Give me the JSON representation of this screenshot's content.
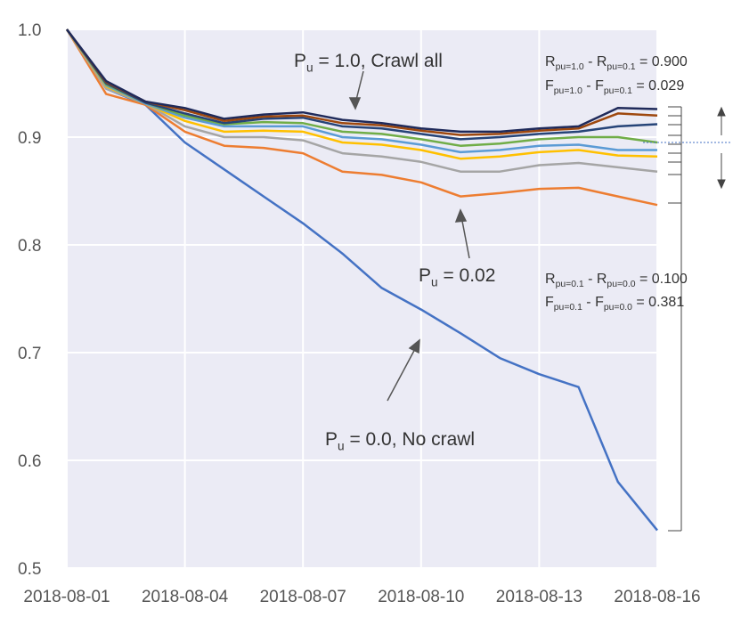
{
  "chart_data": {
    "type": "line",
    "categories": [
      "2018-08-01",
      null,
      null,
      "2018-08-04",
      null,
      null,
      "2018-08-07",
      null,
      null,
      "2018-08-10",
      null,
      null,
      "2018-08-13",
      null,
      null,
      "2018-08-16"
    ],
    "ylim": [
      0.5,
      1
    ],
    "yticks": [
      0.5,
      0.6,
      0.7,
      0.8,
      0.9,
      {
        "value": 1,
        "label": "1.0"
      }
    ],
    "grid": true,
    "series": [
      {
        "color": "#4472c4",
        "values": [
          1.0,
          0.945,
          0.93,
          0.895,
          0.87,
          0.845,
          0.82,
          0.792,
          0.76,
          0.74,
          0.718,
          0.695,
          0.68,
          0.668,
          0.58,
          0.535
        ]
      },
      {
        "color": "#ed7d31",
        "values": [
          1.0,
          0.94,
          0.93,
          0.905,
          0.892,
          0.89,
          0.885,
          0.868,
          0.865,
          0.858,
          0.845,
          0.848,
          0.852,
          0.853,
          0.845,
          0.837
        ]
      },
      {
        "color": "#a5a5a5",
        "values": [
          1.0,
          0.945,
          0.931,
          0.91,
          0.9,
          0.9,
          0.897,
          0.885,
          0.882,
          0.877,
          0.868,
          0.868,
          0.874,
          0.876,
          0.872,
          0.868
        ]
      },
      {
        "color": "#ffc000",
        "values": [
          1.0,
          0.947,
          0.931,
          0.915,
          0.905,
          0.906,
          0.905,
          0.895,
          0.893,
          0.888,
          0.88,
          0.882,
          0.886,
          0.888,
          0.883,
          0.882
        ]
      },
      {
        "color": "#5b9bd5",
        "values": [
          1.0,
          0.948,
          0.931,
          0.918,
          0.91,
          0.91,
          0.91,
          0.9,
          0.898,
          0.893,
          0.886,
          0.888,
          0.892,
          0.893,
          0.888,
          0.888
        ]
      },
      {
        "color": "#70ad47",
        "values": [
          1.0,
          0.949,
          0.932,
          0.92,
          0.912,
          0.914,
          0.913,
          0.905,
          0.903,
          0.898,
          0.892,
          0.894,
          0.898,
          0.9,
          0.9,
          0.895
        ]
      },
      {
        "color": "#264478",
        "values": [
          1.0,
          0.95,
          0.932,
          0.922,
          0.913,
          0.917,
          0.918,
          0.91,
          0.908,
          0.903,
          0.898,
          0.9,
          0.903,
          0.905,
          0.91,
          0.912
        ]
      },
      {
        "color": "#9e480e",
        "values": [
          1.0,
          0.951,
          0.933,
          0.925,
          0.915,
          0.919,
          0.92,
          0.913,
          0.911,
          0.906,
          0.902,
          0.903,
          0.906,
          0.908,
          0.922,
          0.92
        ]
      },
      {
        "color": "#1f2a5a",
        "values": [
          1.0,
          0.952,
          0.933,
          0.927,
          0.917,
          0.921,
          0.923,
          0.916,
          0.913,
          0.908,
          0.905,
          0.905,
          0.908,
          0.91,
          0.927,
          0.926
        ]
      }
    ],
    "annotations": [
      {
        "parts": [
          "P",
          "u",
          " = 1.0, Crawl all"
        ]
      },
      {
        "parts": [
          "P",
          "u",
          " = 0.02"
        ]
      },
      {
        "parts": [
          "P",
          "u",
          " = 0.0, No crawl"
        ]
      },
      {
        "parts": [
          "R",
          "pu=1.0",
          " - R",
          "pu=0.1",
          " = 0.900"
        ]
      },
      {
        "parts": [
          "F",
          "pu=1.0",
          " - F",
          "pu=0.1",
          " = 0.029"
        ]
      },
      {
        "parts": [
          "R",
          "pu=0.1",
          " - R",
          "pu=0.0",
          " = 0.100"
        ]
      },
      {
        "parts": [
          "F",
          "pu=0.1",
          " - F",
          "pu=0.0",
          " = 0.381"
        ]
      }
    ]
  }
}
